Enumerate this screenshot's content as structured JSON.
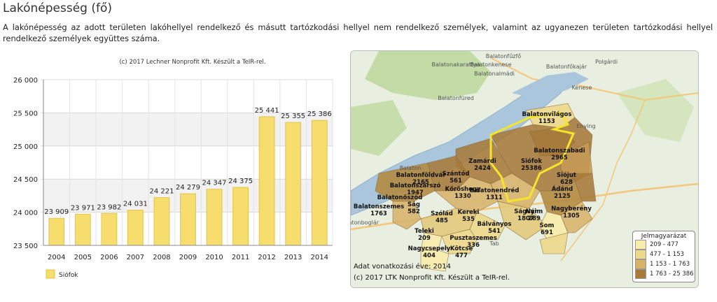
{
  "page": {
    "title": "Lakónépesség (fő)",
    "description": "A lakónépesség az adott területen lakóhellyel rendelkező és másutt tartózkodási hellyel nem rendelkező személyek, valamint az ugyanezen területen tartózkodási hellyel rendelkező személyek együttes száma."
  },
  "chart_data": {
    "type": "bar",
    "credit": "(c) 2017 Lechner Nonprofit Kft. Készült a TeIR-rel.",
    "categories": [
      "2004",
      "2005",
      "2006",
      "2007",
      "2008",
      "2009",
      "2010",
      "2011",
      "2012",
      "2013",
      "2014"
    ],
    "series": [
      {
        "name": "Siófok",
        "values": [
          23909,
          23971,
          23982,
          24031,
          24221,
          24279,
          24347,
          24375,
          25441,
          25355,
          25386
        ],
        "labels": [
          "23 909",
          "23 971",
          "23 982",
          "24 031",
          "24 221",
          "24 279",
          "24 347",
          "24 375",
          "25 441",
          "25 355",
          "25 386"
        ]
      }
    ],
    "ylim": [
      23500,
      26000
    ],
    "yticks": [
      23500,
      24000,
      24500,
      25000,
      25500,
      26000
    ],
    "ytick_labels": [
      "23 500",
      "24 000",
      "24 500",
      "25 000",
      "25 500",
      "26 000"
    ],
    "bar_color": "#f7dd6e",
    "bar_edge": "#e2c44a",
    "legend_position": "bottom-left",
    "grid": true
  },
  "map": {
    "towns": [
      {
        "name": "Balatonvilágos",
        "value": "1153"
      },
      {
        "name": "Siófok",
        "value": "25386"
      },
      {
        "name": "Balatonszabadi",
        "value": "2965"
      },
      {
        "name": "Zamárdi",
        "value": "2424"
      },
      {
        "name": "Szántód",
        "value": "561"
      },
      {
        "name": "Siójut",
        "value": "628"
      },
      {
        "name": "Ádánd",
        "value": "2125"
      },
      {
        "name": "Balatonföldvár",
        "value": "2165"
      },
      {
        "name": "Balatonszárszó",
        "value": "1947"
      },
      {
        "name": "Kőröshegy",
        "value": "1330"
      },
      {
        "name": "Balatonendréd",
        "value": "1311"
      },
      {
        "name": "Balatonőszöd",
        "value": ""
      },
      {
        "name": "Balatonszemes",
        "value": "1763"
      },
      {
        "name": "Ság",
        "value": "582"
      },
      {
        "name": "Ságvár",
        "value": "1807"
      },
      {
        "name": "Nyim",
        "value": "289"
      },
      {
        "name": "Nagyberény",
        "value": "1305"
      },
      {
        "name": "Som",
        "value": "691"
      },
      {
        "name": "Szólád",
        "value": "485"
      },
      {
        "name": "Kereki",
        "value": "535"
      },
      {
        "name": "Teleki",
        "value": "209"
      },
      {
        "name": "Bálványos",
        "value": "541"
      },
      {
        "name": "Pusztaszemes",
        "value": "336"
      },
      {
        "name": "Kötcse",
        "value": "477"
      },
      {
        "name": "Nagycsepely",
        "value": "404"
      }
    ],
    "places": [
      "Balatonakarattya",
      "Balatonkenese",
      "Balatonfűzfő",
      "Balatonalmádi",
      "Polgárdi",
      "Balatonfőkajár",
      "Kenese",
      "Balatonfüred",
      "Balaton",
      "Enying",
      "Balatonboglár",
      "Tab"
    ],
    "legend_title": "Jelmagyarázat",
    "legend": [
      {
        "label": "209 -    477",
        "color": "#f8ecaa"
      },
      {
        "label": "477 - 1 153",
        "color": "#eed98a"
      },
      {
        "label": "1 153 - 1 763",
        "color": "#d7b36a"
      },
      {
        "label": "1 763 - 25 386",
        "color": "#a77a3a"
      }
    ],
    "note1": "Adat vonatkozási éve: 2014",
    "note2": "(c) 2017 LTK Nonprofit Kft. Készült a TeIR-rel."
  }
}
